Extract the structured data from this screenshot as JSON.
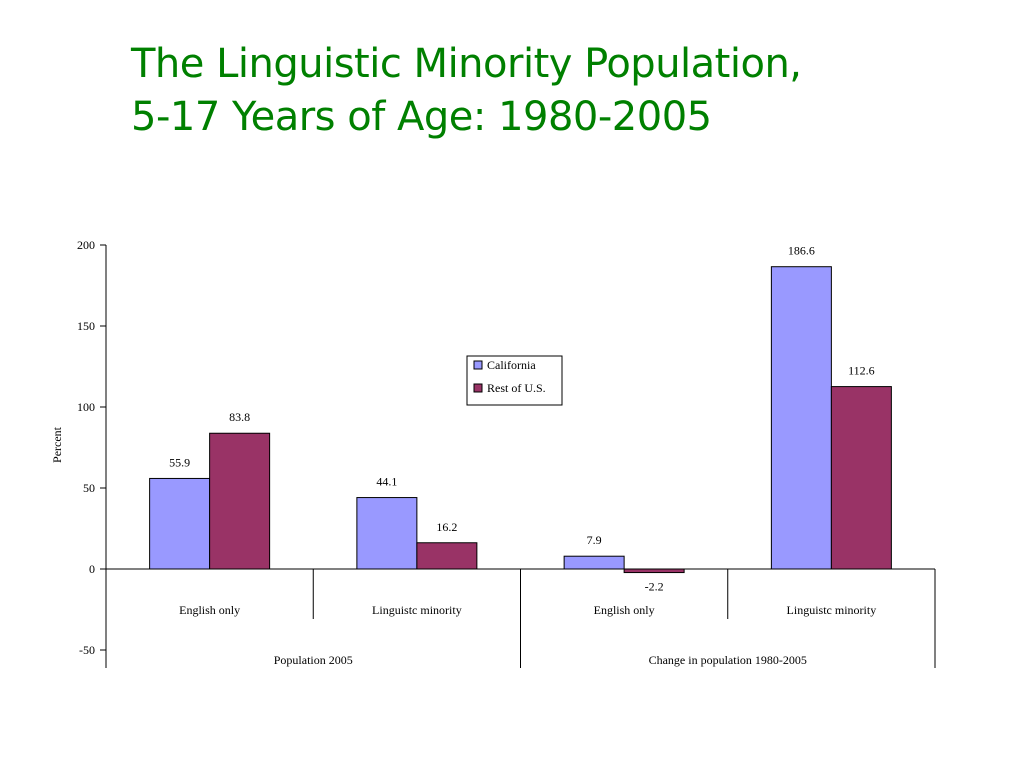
{
  "slide": {
    "title_line1": "The Linguistic Minority Population,",
    "title_line2": "5-17 Years of Age: 1980-2005"
  },
  "chart_data": {
    "type": "bar",
    "ylabel": "Percent",
    "ylim": [
      -50,
      200
    ],
    "yticks": [
      -50,
      0,
      50,
      100,
      150,
      200
    ],
    "grid": false,
    "legend_placement": "center",
    "groups": [
      {
        "label": "Population 2005",
        "categories": [
          "English only",
          "Linguistc minority"
        ]
      },
      {
        "label": "Change in population 1980-2005",
        "categories": [
          "English only",
          "Linguistc minority"
        ]
      }
    ],
    "categories": [
      "English only",
      "Linguistc minority",
      "English only",
      "Linguistc minority"
    ],
    "series": [
      {
        "name": "California",
        "color": "#9999ff",
        "values": [
          55.9,
          44.1,
          7.9,
          186.6
        ]
      },
      {
        "name": "Rest of U.S.",
        "color": "#993366",
        "values": [
          83.8,
          16.2,
          -2.2,
          112.6
        ]
      }
    ],
    "data_labels": [
      [
        "55.9",
        "44.1",
        "7.9",
        "186.6"
      ],
      [
        "83.8",
        "16.2",
        "-2.2",
        "112.6"
      ]
    ]
  }
}
